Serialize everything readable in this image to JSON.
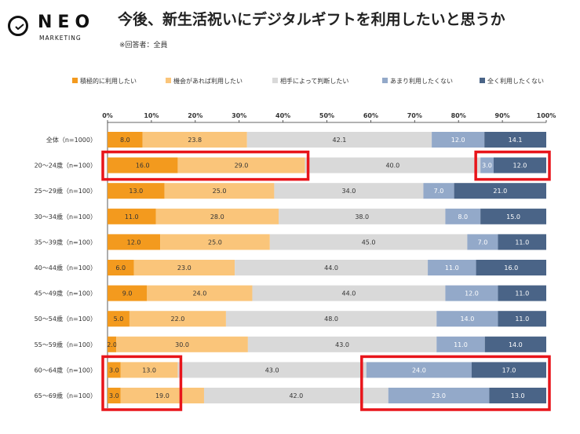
{
  "logo": {
    "word": "NEO",
    "sub": "MARKETING"
  },
  "title": "今後、新生活祝いにデジタルギフトを利用したいと思うか",
  "note": "※回答者：全員",
  "colors": {
    "series": [
      "#f39a1e",
      "#fac57a",
      "#d9d9d9",
      "#93a9c9",
      "#4a6487"
    ],
    "highlight": "#e8151b"
  },
  "chart_data": {
    "type": "bar",
    "orientation": "horizontal",
    "stacked": "percent",
    "title": "今後、新生活祝いにデジタルギフトを利用したいと思うか",
    "xlim": [
      0,
      100
    ],
    "x_ticks": [
      "0%",
      "10%",
      "20%",
      "30%",
      "40%",
      "50%",
      "60%",
      "70%",
      "80%",
      "90%",
      "100%"
    ],
    "legend_position": "top",
    "categories": [
      "全体（n=1000）",
      "20～24歳（n=100）",
      "25～29歳（n=100）",
      "30～34歳（n=100）",
      "35～39歳（n=100）",
      "40～44歳（n=100）",
      "45～49歳（n=100）",
      "50～54歳（n=100）",
      "55～59歳（n=100）",
      "60～64歳（n=100）",
      "65～69歳（n=100）"
    ],
    "series": [
      {
        "name": "積極的に利用したい",
        "values": [
          8.0,
          16.0,
          13.0,
          11.0,
          12.0,
          6.0,
          9.0,
          5.0,
          2.0,
          3.0,
          3.0
        ]
      },
      {
        "name": "機会があれば利用したい",
        "values": [
          23.8,
          29.0,
          25.0,
          28.0,
          25.0,
          23.0,
          24.0,
          22.0,
          30.0,
          13.0,
          19.0
        ]
      },
      {
        "name": "相手によって判断したい",
        "values": [
          42.1,
          40.0,
          34.0,
          38.0,
          45.0,
          44.0,
          44.0,
          48.0,
          43.0,
          43.0,
          42.0
        ]
      },
      {
        "name": "あまり利用したくない",
        "values": [
          12.0,
          3.0,
          7.0,
          8.0,
          7.0,
          11.0,
          12.0,
          14.0,
          11.0,
          24.0,
          23.0
        ]
      },
      {
        "name": "全く利用したくない",
        "values": [
          14.1,
          12.0,
          21.0,
          15.0,
          11.0,
          16.0,
          11.0,
          11.0,
          14.0,
          17.0,
          13.0
        ]
      }
    ],
    "highlights": [
      {
        "row_start": 1,
        "row_end": 1,
        "series_start": 0,
        "series_end": 1
      },
      {
        "row_start": 1,
        "row_end": 1,
        "series_start": 3,
        "series_end": 4
      },
      {
        "row_start": 9,
        "row_end": 10,
        "series_start": 0,
        "series_end": 1
      },
      {
        "row_start": 9,
        "row_end": 10,
        "series_start": 3,
        "series_end": 4
      }
    ]
  }
}
